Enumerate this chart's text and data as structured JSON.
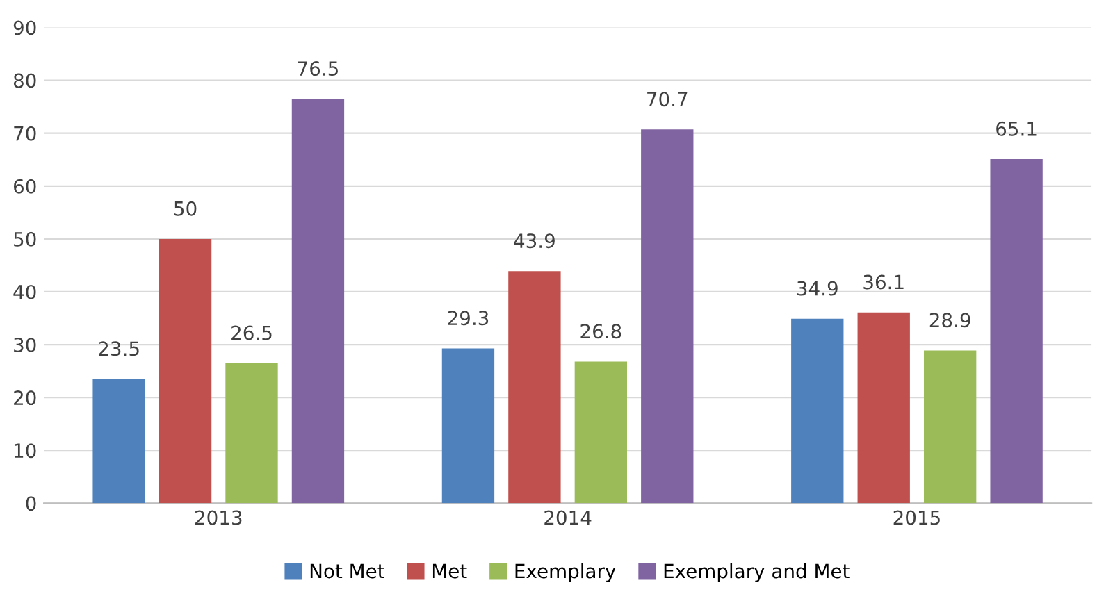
{
  "chart_data": {
    "type": "bar",
    "categories": [
      "2013",
      "2014",
      "2015"
    ],
    "series": [
      {
        "name": "Not Met",
        "color": "#4f81bd",
        "values": [
          23.5,
          29.3,
          34.9
        ]
      },
      {
        "name": "Met",
        "color": "#c0504d",
        "values": [
          50,
          43.9,
          36.1
        ]
      },
      {
        "name": "Exemplary",
        "color": "#9bbb59",
        "values": [
          26.5,
          26.8,
          28.9
        ]
      },
      {
        "name": "Exemplary and Met",
        "color": "#8064a2",
        "values": [
          76.5,
          70.7,
          65.1
        ]
      }
    ],
    "ylim": [
      0,
      90
    ],
    "yticks": [
      0,
      10,
      20,
      30,
      40,
      50,
      60,
      70,
      80,
      90
    ],
    "grid": "y",
    "legend": "bottom",
    "data_labels": true
  }
}
